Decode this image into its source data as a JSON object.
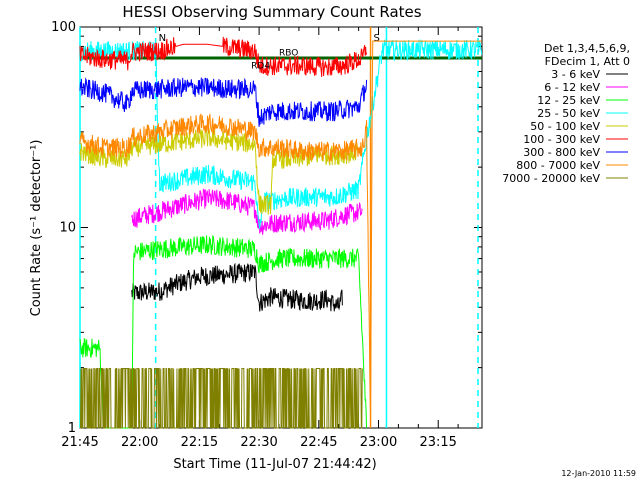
{
  "chart_data": {
    "type": "line",
    "title": "HESSI Observing Summary Count Rates",
    "xlabel": "Start Time (11-Jul-07 21:44:42)",
    "ylabel": "Count Rate (s⁻¹ detector⁻¹)",
    "y_scale": "log",
    "ylim": [
      1,
      100
    ],
    "xlim_minutes": [
      0,
      101
    ],
    "x_ticks": [
      {
        "label": "21:45",
        "minute": 0
      },
      {
        "label": "22:00",
        "minute": 15
      },
      {
        "label": "22:15",
        "minute": 30
      },
      {
        "label": "22:30",
        "minute": 45
      },
      {
        "label": "22:45",
        "minute": 60
      },
      {
        "label": "23:00",
        "minute": 75
      },
      {
        "label": "23:15",
        "minute": 90
      }
    ],
    "y_ticks": [
      {
        "label": "1",
        "value": 1
      },
      {
        "label": "10",
        "value": 10
      },
      {
        "label": "100",
        "value": 100
      }
    ],
    "legend": {
      "placement": "top-right, outside plot",
      "header": [
        "Det 1,3,4,5,6,9,",
        "FDecim 1, Att 0"
      ]
    },
    "series": [
      {
        "name": "3 - 6 keV",
        "color": "#000000",
        "values": [
          [
            13,
            4.7
          ],
          [
            20,
            4.8
          ],
          [
            24,
            5.2
          ],
          [
            30,
            5.7
          ],
          [
            36,
            5.8
          ],
          [
            44,
            6.0
          ],
          [
            45,
            4.2
          ],
          [
            48,
            4.5
          ],
          [
            52,
            4.4
          ],
          [
            58,
            4.3
          ],
          [
            62,
            4.4
          ],
          [
            65,
            4.0
          ],
          [
            66,
            4.5
          ]
        ]
      },
      {
        "name": "6 - 12 keV",
        "color": "#ff00ff",
        "values": [
          [
            13,
            11.0
          ],
          [
            20,
            12.0
          ],
          [
            26,
            13.0
          ],
          [
            32,
            14.0
          ],
          [
            38,
            13.5
          ],
          [
            44,
            12.5
          ],
          [
            45,
            10.2
          ],
          [
            50,
            10.6
          ],
          [
            56,
            10.7
          ],
          [
            62,
            10.8
          ],
          [
            66,
            11.5
          ],
          [
            71,
            12.0
          ]
        ]
      },
      {
        "name": "12 - 25 keV",
        "color": "#00ff00",
        "values": [
          [
            0,
            2.5
          ],
          [
            4,
            2.5
          ],
          [
            5,
            2.5
          ],
          [
            6,
            1.0
          ],
          [
            13,
            1.0
          ],
          [
            13.5,
            7.5
          ],
          [
            20,
            7.8
          ],
          [
            26,
            8.0
          ],
          [
            32,
            8.2
          ],
          [
            38,
            8.0
          ],
          [
            44,
            7.8
          ],
          [
            45,
            6.6
          ],
          [
            50,
            7.0
          ],
          [
            56,
            7.0
          ],
          [
            62,
            7.0
          ],
          [
            70,
            7.0
          ],
          [
            72,
            1.0
          ]
        ]
      },
      {
        "name": "25 - 50 keV",
        "color": "#00ffff",
        "values": [
          [
            0,
            76
          ],
          [
            17,
            76
          ],
          [
            18,
            76
          ],
          [
            19,
            76
          ],
          [
            20,
            16.5
          ],
          [
            26,
            17.5
          ],
          [
            32,
            18.5
          ],
          [
            38,
            17.5
          ],
          [
            44,
            16.8
          ],
          [
            45,
            9.5
          ],
          [
            46,
            13.5
          ],
          [
            52,
            14.0
          ],
          [
            58,
            14.2
          ],
          [
            64,
            14.2
          ],
          [
            70,
            15.5
          ],
          [
            72,
            28
          ],
          [
            76,
            77
          ],
          [
            101,
            77
          ]
        ]
      },
      {
        "name": "50 - 100 keV",
        "color": "#cccc00",
        "values": [
          [
            0,
            24
          ],
          [
            6,
            22
          ],
          [
            12,
            22
          ],
          [
            13,
            25
          ],
          [
            20,
            26
          ],
          [
            26,
            27
          ],
          [
            32,
            28
          ],
          [
            38,
            27
          ],
          [
            44,
            26
          ],
          [
            45,
            13
          ],
          [
            48,
            13
          ],
          [
            48.5,
            22
          ],
          [
            54,
            22
          ],
          [
            60,
            23
          ],
          [
            66,
            23
          ],
          [
            70,
            24
          ]
        ]
      },
      {
        "name": "100 - 300 keV",
        "color": "#ff0000",
        "values": [
          [
            0,
            72
          ],
          [
            6,
            69
          ],
          [
            12,
            68
          ],
          [
            13,
            75
          ],
          [
            20,
            76
          ],
          [
            26,
            82
          ],
          [
            32,
            82
          ],
          [
            38,
            79
          ],
          [
            44,
            76
          ],
          [
            45,
            64
          ],
          [
            50,
            64
          ],
          [
            56,
            64
          ],
          [
            62,
            63
          ],
          [
            66,
            64
          ],
          [
            71,
            70
          ],
          [
            72,
            80
          ]
        ]
      },
      {
        "name": "300 - 800 keV",
        "color": "#0000ff",
        "values": [
          [
            0,
            50
          ],
          [
            6,
            47
          ],
          [
            12,
            41
          ],
          [
            13,
            48
          ],
          [
            20,
            49
          ],
          [
            26,
            50
          ],
          [
            32,
            50
          ],
          [
            38,
            49
          ],
          [
            44,
            49
          ],
          [
            45,
            35
          ],
          [
            48,
            38
          ],
          [
            52,
            38
          ],
          [
            58,
            38
          ],
          [
            64,
            38
          ],
          [
            70,
            40
          ],
          [
            72,
            52
          ]
        ]
      },
      {
        "name": "800 - 7000 keV",
        "color": "#ff8800",
        "values": [
          [
            0,
            27
          ],
          [
            6,
            25
          ],
          [
            12,
            25
          ],
          [
            13,
            28
          ],
          [
            20,
            30
          ],
          [
            26,
            32
          ],
          [
            32,
            33
          ],
          [
            38,
            32
          ],
          [
            44,
            30
          ],
          [
            45,
            25
          ],
          [
            50,
            25
          ],
          [
            56,
            24
          ],
          [
            62,
            24
          ],
          [
            66,
            24
          ],
          [
            71,
            25
          ],
          [
            72,
            31
          ],
          [
            73,
            1
          ],
          [
            73.5,
            85
          ],
          [
            101,
            85
          ]
        ]
      },
      {
        "name": "7000 - 20000 keV",
        "color": "#808000",
        "values": [
          [
            0,
            1.4
          ],
          [
            10,
            1.5
          ],
          [
            20,
            1.4
          ],
          [
            30,
            1.5
          ],
          [
            40,
            1.4
          ],
          [
            50,
            1.5
          ],
          [
            60,
            1.4
          ],
          [
            71,
            1.4
          ]
        ]
      }
    ],
    "vlines": [
      {
        "label": "",
        "minute": 0,
        "color": "#00ffff",
        "style": "solid"
      },
      {
        "label": "N",
        "minute": 19,
        "color": "#00ffff",
        "style": "dashed"
      },
      {
        "label": "S",
        "minute": 73,
        "color": "#ff8800",
        "style": "solid"
      },
      {
        "label": "",
        "minute": 77,
        "color": "#00ffff",
        "style": "solid"
      },
      {
        "label": "",
        "minute": 100,
        "color": "#00ffff",
        "style": "dashed"
      }
    ],
    "flag_line": {
      "value": 70,
      "color": "#006400"
    },
    "annotations": [
      {
        "text": "RD4",
        "minute": 43,
        "value": 62,
        "color": "#006400"
      },
      {
        "text": "RBO",
        "minute": 50,
        "value": 72,
        "color": "#006400"
      }
    ]
  },
  "footer": {
    "timestamp": "12-Jan-2010 11:59"
  }
}
